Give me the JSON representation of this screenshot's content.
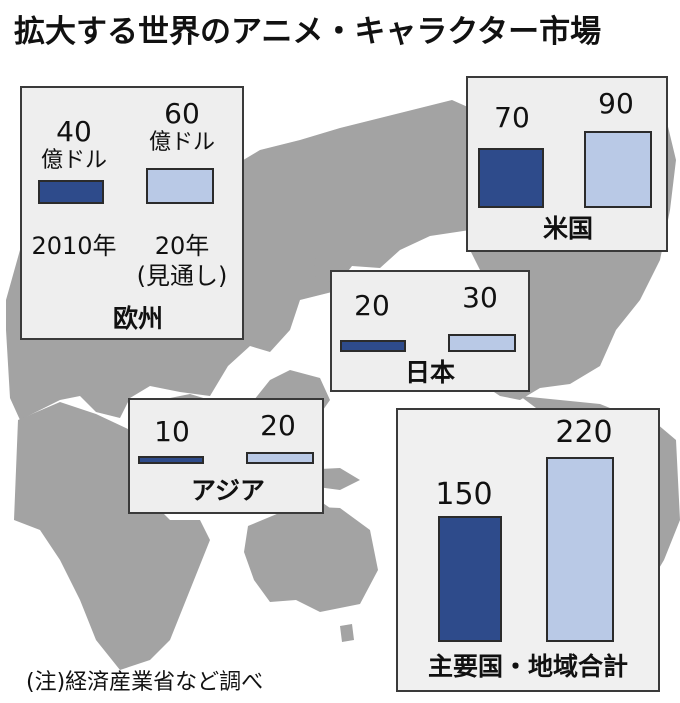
{
  "title": "拡大する世界のアニメ・キャラクター市場",
  "note": "(注)経済産業省など調べ",
  "chart_data": {
    "type": "bar",
    "unit": "億ドル",
    "categories": [
      "2010年",
      "20年(見通し)"
    ],
    "category_labels": {
      "first": "2010年",
      "second_line1": "20年",
      "second_line2": "(見通し)"
    },
    "colors": {
      "2010": "#2e4b8b",
      "2020": "#b9c9e6",
      "map": "#a3a3a3",
      "box": "#eeeeee"
    },
    "regions": [
      {
        "name": "欧州",
        "values": [
          40,
          60
        ]
      },
      {
        "name": "米国",
        "values": [
          70,
          90
        ]
      },
      {
        "name": "日本",
        "values": [
          20,
          30
        ]
      },
      {
        "name": "アジア",
        "values": [
          10,
          20
        ]
      },
      {
        "name": "主要国・地域合計",
        "values": [
          150,
          220
        ]
      }
    ]
  }
}
